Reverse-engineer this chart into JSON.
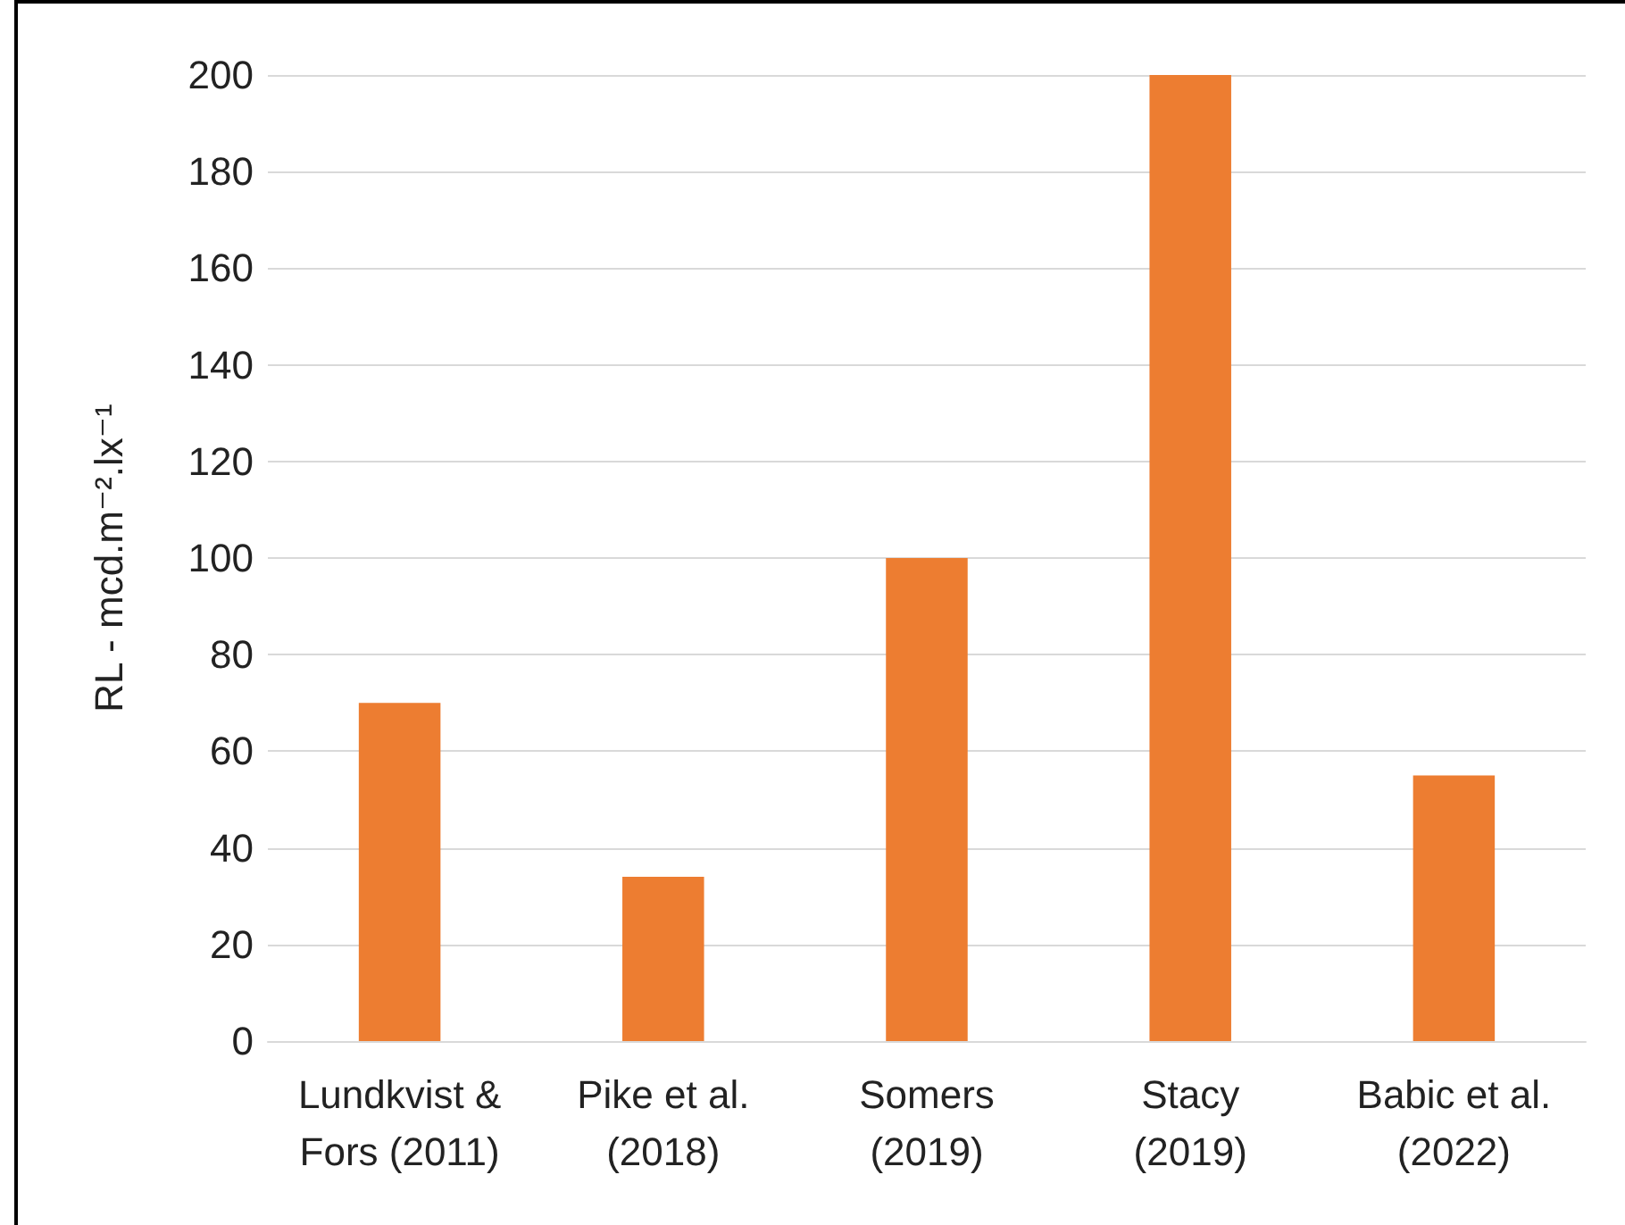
{
  "chart_data": {
    "type": "bar",
    "ylabel": "RL - mcd.m⁻².lx⁻¹",
    "categories": [
      "Lundkvist &\nFors (2011)",
      "Pike et al.\n(2018)",
      "Somers\n(2019)",
      "Stacy\n(2019)",
      "Babic et al.\n(2022)"
    ],
    "values": [
      70,
      34,
      100,
      200,
      55
    ],
    "color": "#ed7d31",
    "ylim": [
      0,
      200
    ],
    "yticks": [
      0,
      20,
      40,
      60,
      80,
      100,
      120,
      140,
      160,
      180,
      200
    ],
    "grid": "y"
  }
}
